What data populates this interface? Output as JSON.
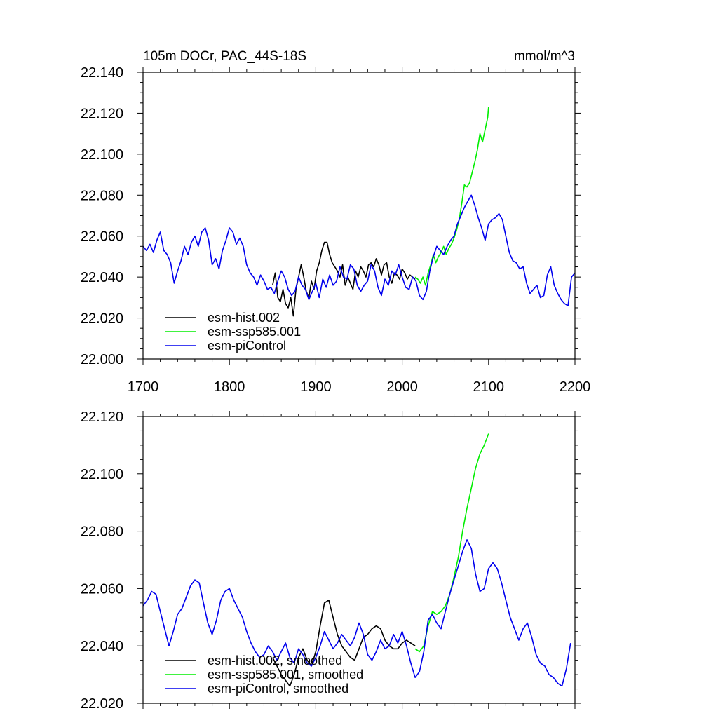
{
  "colors": {
    "hist": "#000000",
    "ssp": "#00ee00",
    "pic": "#0000ee",
    "axis": "#000000",
    "background": "#ffffff"
  },
  "chart_data": [
    {
      "type": "line",
      "title": "105m DOCr, PAC_44S-18S",
      "units": "mmol/m^3",
      "xlim": [
        1700,
        2200
      ],
      "ylim": [
        22.0,
        22.14
      ],
      "xticks": [
        1700,
        1800,
        1900,
        2000,
        2100,
        2200
      ],
      "xtick_labels": [
        "1700",
        "1800",
        "1900",
        "2000",
        "2100",
        "2200"
      ],
      "yticks": [
        22.0,
        22.02,
        22.04,
        22.06,
        22.08,
        22.1,
        22.12,
        22.14
      ],
      "ytick_labels": [
        "22.000",
        "22.020",
        "22.040",
        "22.060",
        "22.080",
        "22.100",
        "22.120",
        "22.140"
      ],
      "legend": [
        "esm-hist.002",
        "esm-ssp585.001",
        "esm-piControl"
      ],
      "legend_position": "bottom-left",
      "series": [
        {
          "name": "esm-hist.002",
          "color_key": "hist",
          "x": [
            1850,
            1853,
            1856,
            1859,
            1862,
            1865,
            1868,
            1871,
            1874,
            1877,
            1880,
            1883,
            1886,
            1889,
            1892,
            1895,
            1898,
            1901,
            1904,
            1907,
            1910,
            1913,
            1916,
            1919,
            1922,
            1925,
            1928,
            1931,
            1934,
            1937,
            1940,
            1943,
            1946,
            1949,
            1952,
            1955,
            1958,
            1961,
            1964,
            1967,
            1970,
            1973,
            1976,
            1979,
            1982,
            1985,
            1988,
            1991,
            1994,
            1997,
            2000,
            2003,
            2006,
            2009,
            2012,
            2015
          ],
          "values": [
            22.036,
            22.042,
            22.03,
            22.028,
            22.034,
            22.027,
            22.025,
            22.03,
            22.021,
            22.034,
            22.04,
            22.046,
            22.04,
            22.033,
            22.03,
            22.038,
            22.034,
            22.043,
            22.047,
            22.053,
            22.057,
            22.057,
            22.051,
            22.047,
            22.045,
            22.043,
            22.04,
            22.046,
            22.036,
            22.04,
            22.037,
            22.034,
            22.043,
            22.04,
            22.045,
            22.043,
            22.04,
            22.046,
            22.047,
            22.045,
            22.049,
            22.046,
            22.041,
            22.046,
            22.047,
            22.04,
            22.037,
            22.042,
            22.041,
            22.039,
            22.044,
            22.042,
            22.039,
            22.041,
            22.04,
            22.039
          ]
        },
        {
          "name": "esm-ssp585.001",
          "color_key": "ssp",
          "x": [
            2015,
            2018,
            2021,
            2024,
            2027,
            2030,
            2033,
            2036,
            2039,
            2042,
            2045,
            2048,
            2051,
            2054,
            2057,
            2060,
            2063,
            2066,
            2069,
            2072,
            2075,
            2078,
            2081,
            2084,
            2087,
            2090,
            2093,
            2096,
            2099,
            2100
          ],
          "values": [
            22.04,
            22.039,
            22.037,
            22.04,
            22.036,
            22.042,
            22.046,
            22.051,
            22.047,
            22.05,
            22.052,
            22.055,
            22.051,
            22.054,
            22.056,
            22.059,
            22.063,
            22.068,
            22.076,
            22.085,
            22.084,
            22.086,
            22.091,
            22.096,
            22.102,
            22.11,
            22.106,
            22.112,
            22.118,
            22.123
          ]
        },
        {
          "name": "esm-piControl",
          "color_key": "pic",
          "x": [
            1700,
            1704,
            1708,
            1712,
            1716,
            1720,
            1724,
            1728,
            1732,
            1736,
            1740,
            1744,
            1748,
            1752,
            1756,
            1760,
            1764,
            1768,
            1772,
            1776,
            1780,
            1784,
            1788,
            1792,
            1796,
            1800,
            1804,
            1808,
            1812,
            1816,
            1820,
            1824,
            1828,
            1832,
            1836,
            1840,
            1844,
            1848,
            1852,
            1856,
            1860,
            1864,
            1868,
            1872,
            1876,
            1880,
            1884,
            1888,
            1892,
            1896,
            1900,
            1904,
            1908,
            1912,
            1916,
            1920,
            1924,
            1928,
            1932,
            1936,
            1940,
            1944,
            1948,
            1952,
            1956,
            1960,
            1964,
            1968,
            1972,
            1976,
            1980,
            1984,
            1988,
            1992,
            1996,
            2000,
            2004,
            2008,
            2012,
            2016,
            2020,
            2024,
            2028,
            2032,
            2036,
            2040,
            2044,
            2048,
            2052,
            2056,
            2060,
            2064,
            2068,
            2072,
            2076,
            2080,
            2084,
            2088,
            2092,
            2096,
            2100,
            2104,
            2108,
            2112,
            2116,
            2120,
            2124,
            2128,
            2132,
            2136,
            2140,
            2144,
            2148,
            2152,
            2156,
            2160,
            2164,
            2168,
            2172,
            2176,
            2180,
            2184,
            2188,
            2192,
            2196,
            2200
          ],
          "values": [
            22.055,
            22.053,
            22.056,
            22.052,
            22.058,
            22.062,
            22.053,
            22.051,
            22.047,
            22.037,
            22.043,
            22.048,
            22.055,
            22.051,
            22.057,
            22.06,
            22.055,
            22.062,
            22.064,
            22.058,
            22.046,
            22.049,
            22.044,
            22.053,
            22.058,
            22.064,
            22.062,
            22.056,
            22.059,
            22.055,
            22.046,
            22.042,
            22.04,
            22.036,
            22.041,
            22.038,
            22.034,
            22.035,
            22.032,
            22.038,
            22.043,
            22.04,
            22.034,
            22.031,
            22.033,
            22.04,
            22.036,
            22.034,
            22.029,
            22.033,
            22.037,
            22.03,
            22.039,
            22.035,
            22.041,
            22.036,
            22.038,
            22.045,
            22.04,
            22.039,
            22.046,
            22.044,
            22.036,
            22.033,
            22.036,
            22.038,
            22.046,
            22.043,
            22.035,
            22.031,
            22.039,
            22.036,
            22.043,
            22.041,
            22.046,
            22.04,
            22.035,
            22.034,
            22.04,
            22.038,
            22.031,
            22.029,
            22.033,
            22.043,
            22.05,
            22.055,
            22.053,
            22.051,
            22.055,
            22.058,
            22.06,
            22.066,
            22.07,
            22.074,
            22.077,
            22.08,
            22.075,
            22.069,
            22.064,
            22.058,
            22.066,
            22.068,
            22.069,
            22.071,
            22.068,
            22.06,
            22.052,
            22.048,
            22.047,
            22.044,
            22.045,
            22.037,
            22.032,
            22.034,
            22.036,
            22.03,
            22.031,
            22.041,
            22.045,
            22.036,
            22.032,
            22.029,
            22.027,
            22.026,
            22.04,
            22.042
          ]
        }
      ]
    },
    {
      "type": "line",
      "title": "",
      "units": "",
      "xlim": [
        1700,
        2200
      ],
      "ylim": [
        22.02,
        22.12
      ],
      "xticks": [
        1700,
        1800,
        1900,
        2000,
        2100,
        2200
      ],
      "yticks": [
        22.02,
        22.04,
        22.06,
        22.08,
        22.1,
        22.12
      ],
      "ytick_labels": [
        "22.020",
        "22.040",
        "22.060",
        "22.080",
        "22.100",
        "22.120"
      ],
      "legend": [
        "esm-hist.002, smoothed",
        "esm-ssp585.001, smoothed",
        "esm-piControl, smoothed"
      ],
      "legend_position": "bottom-left",
      "series": [
        {
          "name": "esm-hist.002, smoothed",
          "color_key": "hist",
          "x": [
            1850,
            1855,
            1860,
            1865,
            1870,
            1875,
            1880,
            1885,
            1890,
            1895,
            1900,
            1905,
            1910,
            1915,
            1920,
            1925,
            1930,
            1935,
            1940,
            1945,
            1950,
            1955,
            1960,
            1965,
            1970,
            1975,
            1980,
            1985,
            1990,
            1995,
            2000,
            2005,
            2010,
            2015
          ],
          "values": [
            22.036,
            22.033,
            22.03,
            22.028,
            22.026,
            22.03,
            22.036,
            22.039,
            22.035,
            22.033,
            22.038,
            22.047,
            22.055,
            22.056,
            22.05,
            22.044,
            22.04,
            22.038,
            22.036,
            22.035,
            22.039,
            22.043,
            22.044,
            22.046,
            22.047,
            22.046,
            22.042,
            22.04,
            22.039,
            22.039,
            22.041,
            22.042,
            22.041,
            22.04
          ]
        },
        {
          "name": "esm-ssp585.001, smoothed",
          "color_key": "ssp",
          "x": [
            2015,
            2020,
            2025,
            2030,
            2035,
            2040,
            2045,
            2050,
            2055,
            2060,
            2065,
            2070,
            2075,
            2080,
            2085,
            2090,
            2095,
            2100
          ],
          "values": [
            22.039,
            22.038,
            22.04,
            22.047,
            22.052,
            22.051,
            22.052,
            22.054,
            22.058,
            22.064,
            22.071,
            22.08,
            22.088,
            22.095,
            22.102,
            22.107,
            22.11,
            22.114
          ]
        },
        {
          "name": "esm-piControl, smoothed",
          "color_key": "pic",
          "x": [
            1700,
            1705,
            1710,
            1715,
            1720,
            1725,
            1730,
            1735,
            1740,
            1745,
            1750,
            1755,
            1760,
            1765,
            1770,
            1775,
            1780,
            1785,
            1790,
            1795,
            1800,
            1805,
            1810,
            1815,
            1820,
            1825,
            1830,
            1835,
            1840,
            1845,
            1850,
            1855,
            1860,
            1865,
            1870,
            1875,
            1880,
            1885,
            1890,
            1895,
            1900,
            1905,
            1910,
            1915,
            1920,
            1925,
            1930,
            1935,
            1940,
            1945,
            1950,
            1955,
            1960,
            1965,
            1970,
            1975,
            1980,
            1985,
            1990,
            1995,
            2000,
            2005,
            2010,
            2015,
            2020,
            2025,
            2030,
            2035,
            2040,
            2045,
            2050,
            2055,
            2060,
            2065,
            2070,
            2075,
            2080,
            2085,
            2090,
            2095,
            2100,
            2105,
            2110,
            2115,
            2120,
            2125,
            2130,
            2135,
            2140,
            2145,
            2150,
            2155,
            2160,
            2165,
            2170,
            2175,
            2180,
            2185,
            2190,
            2195
          ],
          "values": [
            22.054,
            22.056,
            22.059,
            22.058,
            22.052,
            22.046,
            22.04,
            22.045,
            22.051,
            22.053,
            22.057,
            22.061,
            22.063,
            22.062,
            22.055,
            22.048,
            22.044,
            22.049,
            22.056,
            22.059,
            22.06,
            22.056,
            22.053,
            22.05,
            22.045,
            22.041,
            22.038,
            22.036,
            22.037,
            22.04,
            22.038,
            22.035,
            22.038,
            22.041,
            22.036,
            22.034,
            22.039,
            22.037,
            22.034,
            22.033,
            22.036,
            22.04,
            22.045,
            22.042,
            22.039,
            22.041,
            22.044,
            22.042,
            22.04,
            22.043,
            22.048,
            22.044,
            22.037,
            22.035,
            22.038,
            22.042,
            22.039,
            22.04,
            22.044,
            22.041,
            22.045,
            22.04,
            22.034,
            22.029,
            22.031,
            22.038,
            22.049,
            22.051,
            22.048,
            22.046,
            22.052,
            22.058,
            22.063,
            22.068,
            22.073,
            22.077,
            22.074,
            22.065,
            22.059,
            22.06,
            22.067,
            22.069,
            22.067,
            22.062,
            22.056,
            22.05,
            22.046,
            22.042,
            22.046,
            22.048,
            22.043,
            22.037,
            22.034,
            22.033,
            22.03,
            22.029,
            22.027,
            22.026,
            22.032,
            22.041
          ]
        }
      ]
    }
  ]
}
